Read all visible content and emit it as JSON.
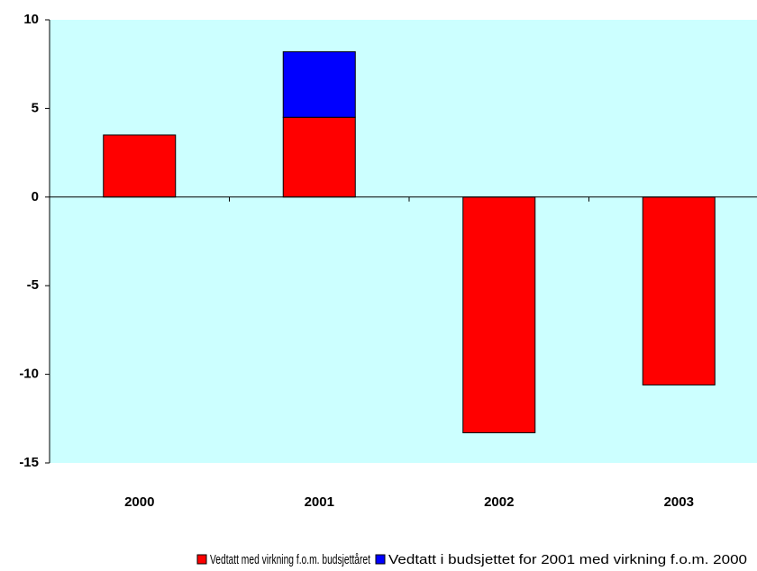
{
  "chart_data": {
    "type": "stacked_bar",
    "categories": [
      "2000",
      "2001",
      "2002",
      "2003"
    ],
    "series": [
      {
        "name": "Vedtatt med virkning f.o.m. budsjettåret",
        "color": "#ff0000",
        "values": [
          3.5,
          4.5,
          -13.3,
          -10.6
        ]
      },
      {
        "name": "Vedtatt i budsjettet for 2001 med virkning f.o.m. 2000",
        "color": "#0000ff",
        "values": [
          null,
          3.7,
          null,
          null
        ]
      }
    ],
    "ylim": [
      -15,
      10
    ],
    "yticks": [
      -15,
      -10,
      -5,
      0,
      5,
      10
    ],
    "background": "#ccffff",
    "legend": "bottom"
  }
}
